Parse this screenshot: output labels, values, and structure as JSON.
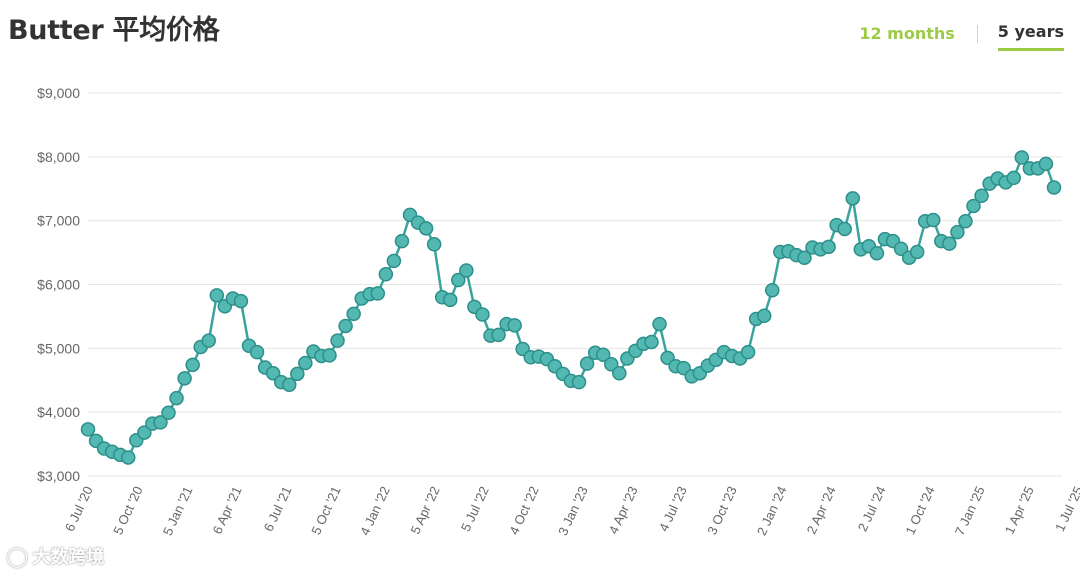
{
  "header": {
    "title": "Butter 平均价格",
    "tabs": [
      {
        "label": "12 months",
        "active": false
      },
      {
        "label": "5 years",
        "active": true
      }
    ]
  },
  "watermark": {
    "text": "大数跨境",
    "icon": "wechat-logo-icon"
  },
  "colors": {
    "series": "#3aa39e",
    "point_fill": "#52b8b1",
    "point_stroke": "#2d8f8a",
    "grid": "#e6e6e6",
    "tab_accent": "#9ccb46",
    "text": "#333333",
    "axis_text": "#666666"
  },
  "chart_data": {
    "type": "line",
    "title": "Butter 平均价格",
    "xlabel": "",
    "ylabel": "",
    "ylim": [
      3000,
      9000
    ],
    "yticks": [
      3000,
      4000,
      5000,
      6000,
      7000,
      8000,
      9000
    ],
    "ytick_labels": [
      "$3,000",
      "$4,000",
      "$5,000",
      "$6,000",
      "$7,000",
      "$8,000",
      "$9,000"
    ],
    "xticks": [
      {
        "label": "6 Jul '20",
        "index": 0
      },
      {
        "label": "5 Oct '20",
        "index": 6.2
      },
      {
        "label": "5 Jan '21",
        "index": 12.4
      },
      {
        "label": "6 Apr '21",
        "index": 18.5
      },
      {
        "label": "6 Jul '21",
        "index": 24.7
      },
      {
        "label": "5 Oct '21",
        "index": 30.8
      },
      {
        "label": "4 Jan '22",
        "index": 36.9
      },
      {
        "label": "5 Apr '22",
        "index": 43.1
      },
      {
        "label": "5 Jul '22",
        "index": 49.2
      },
      {
        "label": "4 Oct '22",
        "index": 55.4
      },
      {
        "label": "3 Jan '23",
        "index": 61.5
      },
      {
        "label": "4 Apr '23",
        "index": 67.7
      },
      {
        "label": "4 Jul '23",
        "index": 73.8
      },
      {
        "label": "3 Oct '23",
        "index": 80.0
      },
      {
        "label": "2 Jan '24",
        "index": 86.2
      },
      {
        "label": "2 Apr '24",
        "index": 92.3
      },
      {
        "label": "2 Jul '24",
        "index": 98.5
      },
      {
        "label": "1 Oct '24",
        "index": 104.6
      },
      {
        "label": "7 Jan '25",
        "index": 110.8
      },
      {
        "label": "1 Apr '25",
        "index": 116.9
      },
      {
        "label": "1 Jul '25",
        "index": 123
      }
    ],
    "grid": true,
    "legend": "none",
    "series": [
      {
        "values": [
          3730,
          3550,
          3430,
          3380,
          3330,
          3290,
          3560,
          3680,
          3820,
          3840,
          3990,
          4220,
          4530,
          4740,
          5020,
          5120,
          5830,
          5660,
          5780,
          5740,
          5040,
          4940,
          4700,
          4610,
          4470,
          4430,
          4600,
          4770,
          4950,
          4880,
          4890,
          5120,
          5350,
          5540,
          5780,
          5850,
          5860,
          6160,
          6370,
          6680,
          7090,
          6970,
          6880,
          6630,
          5800,
          5760,
          6070,
          6220,
          5650,
          5530,
          5200,
          5210,
          5380,
          5360,
          4990,
          4860,
          4870,
          4830,
          4720,
          4600,
          4490,
          4470,
          4760,
          4930,
          4900,
          4750,
          4610,
          4840,
          4960,
          5070,
          5100,
          5380,
          4850,
          4720,
          4690,
          4560,
          4610,
          4730,
          4820,
          4940,
          4880,
          4840,
          4940,
          5460,
          5510,
          5910,
          6510,
          6520,
          6460,
          6420,
          6580,
          6550,
          6590,
          6930,
          6870,
          7350,
          6550,
          6600,
          6490,
          6710,
          6680,
          6560,
          6420,
          6510,
          6990,
          7010,
          6680,
          6640,
          6820,
          6990,
          7230,
          7390,
          7580,
          7660,
          7600,
          7670,
          7990,
          7820,
          7820,
          7890,
          7520
        ]
      }
    ]
  }
}
